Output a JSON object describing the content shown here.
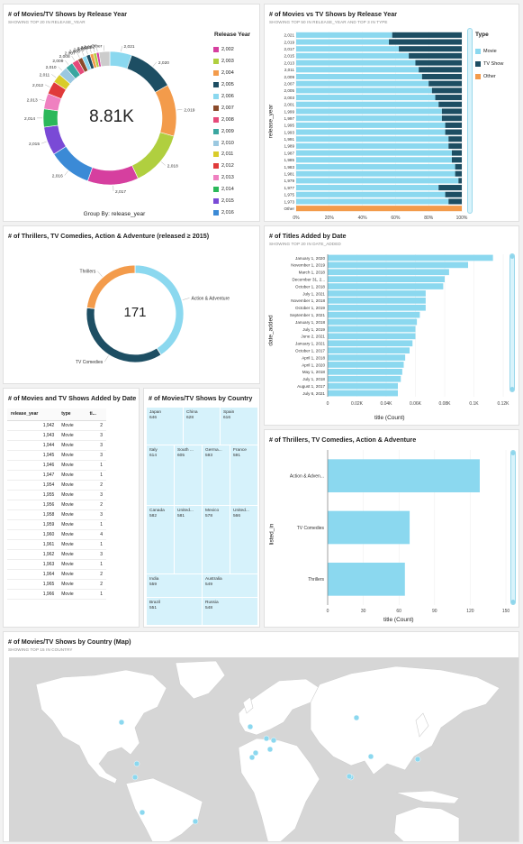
{
  "colors": {
    "accent": "#8bd8ef",
    "dark": "#1d4e63",
    "other": "#f39b4b",
    "panel_bg": "#ffffff",
    "page_bg": "#f2f2f2"
  },
  "release_year_panel": {
    "title": "# of Movies/TV Shows by Release Year",
    "subtitle": "SHOWING TOP 20 IN RELEASE_YEAR",
    "center_value": "8.81K",
    "group_by": "Group By: release_year",
    "legend_title": "Release Year",
    "legend": [
      {
        "label": "2,002",
        "color": "#d63f9f"
      },
      {
        "label": "2,003",
        "color": "#b0cf3f"
      },
      {
        "label": "2,004",
        "color": "#f39b4b"
      },
      {
        "label": "2,005",
        "color": "#1d4e63"
      },
      {
        "label": "2,006",
        "color": "#8bd8ef"
      },
      {
        "label": "2,007",
        "color": "#8a4a2a"
      },
      {
        "label": "2,008",
        "color": "#e64a7a"
      },
      {
        "label": "2,009",
        "color": "#3aa6a0"
      },
      {
        "label": "2,010",
        "color": "#9bc8e0"
      },
      {
        "label": "2,011",
        "color": "#d9cc2a"
      },
      {
        "label": "2,012",
        "color": "#e03a3a"
      },
      {
        "label": "2,013",
        "color": "#ef80c0"
      },
      {
        "label": "2,014",
        "color": "#2bb85a"
      },
      {
        "label": "2,015",
        "color": "#7a4ad6"
      },
      {
        "label": "2,016",
        "color": "#3b8ad6"
      }
    ],
    "slices": [
      {
        "label": "2,021",
        "value": 5.1,
        "color": "#8bd8ef"
      },
      {
        "label": "2,020",
        "value": 10.9,
        "color": "#1d4e63"
      },
      {
        "label": "2,019",
        "value": 12.0,
        "color": "#f39b4b"
      },
      {
        "label": "2,018",
        "value": 13.0,
        "color": "#b0cf3f"
      },
      {
        "label": "2,017",
        "value": 11.8,
        "color": "#d63f9f"
      },
      {
        "label": "2,016",
        "value": 10.0,
        "color": "#3b8ad6"
      },
      {
        "label": "2,015",
        "value": 6.6,
        "color": "#7a4ad6"
      },
      {
        "label": "2,014",
        "value": 4.2,
        "color": "#2bb85a"
      },
      {
        "label": "2,013",
        "value": 3.6,
        "color": "#ef80c0"
      },
      {
        "label": "2,012",
        "value": 3.0,
        "color": "#e03a3a"
      },
      {
        "label": "2,011",
        "value": 2.1,
        "color": "#d9cc2a"
      },
      {
        "label": "2,010",
        "value": 2.1,
        "color": "#9bc8e0"
      },
      {
        "label": "2,009",
        "value": 1.8,
        "color": "#3aa6a0"
      },
      {
        "label": "2,008",
        "value": 1.5,
        "color": "#e64a7a"
      },
      {
        "label": "2,007",
        "value": 1.1,
        "color": "#8a4a2a"
      },
      {
        "label": "2,006",
        "value": 1.0,
        "color": "#8bd8ef"
      },
      {
        "label": "2,005",
        "value": 0.9,
        "color": "#1d4e63"
      },
      {
        "label": "2,004",
        "value": 0.8,
        "color": "#f39b4b"
      },
      {
        "label": "2,003",
        "value": 0.7,
        "color": "#b0cf3f"
      },
      {
        "label": "2,002",
        "value": 0.6,
        "color": "#d63f9f"
      },
      {
        "label": "Other",
        "value": 2.5,
        "color": "#cccccc"
      }
    ]
  },
  "movies_vs_tv_panel": {
    "title": "# of Movies vs TV Shows by Release Year",
    "subtitle": "SHOWING TOP 50 IN RELEASE_YEAR AND TOP 3 IN TYPE",
    "ylabel": "release_year",
    "legend_title": "Type",
    "legend": [
      {
        "label": "Movie",
        "color": "#8bd8ef"
      },
      {
        "label": "TV Show",
        "color": "#1d4e63"
      },
      {
        "label": "Other",
        "color": "#f39b4b"
      }
    ],
    "x_ticks": [
      "0%",
      "20%",
      "40%",
      "60%",
      "80%",
      "100%"
    ]
  },
  "thrillers_donut_panel": {
    "title": "# of Thrillers, TV Comedies, Action & Adventure (released ≥ 2015)",
    "center_value": "171",
    "slices": [
      {
        "label": "Action & Adventure",
        "value": 41,
        "color": "#8bd8ef"
      },
      {
        "label": "TV Comedies",
        "value": 36,
        "color": "#1d4e63"
      },
      {
        "label": "Thrillers",
        "value": 23,
        "color": "#f39b4b"
      }
    ]
  },
  "titles_added_panel": {
    "title": "# of Titles Added by Date",
    "subtitle": "SHOWING TOP 20 IN DATE_ADDED",
    "ylabel": "date_added",
    "xlabel": "title (Count)",
    "x_ticks": [
      "0",
      "0.02K",
      "0.04K",
      "0.06K",
      "0.08K",
      "0.1K",
      "0.12K"
    ]
  },
  "added_by_date_panel": {
    "title": "# of Movies and TV Shows Added by Date",
    "columns": [
      "release_year",
      "type",
      "ti..."
    ],
    "rows": [
      [
        "1,942",
        "Movie",
        "2"
      ],
      [
        "1,943",
        "Movie",
        "3"
      ],
      [
        "1,944",
        "Movie",
        "3"
      ],
      [
        "1,945",
        "Movie",
        "3"
      ],
      [
        "1,946",
        "Movie",
        "1"
      ],
      [
        "1,947",
        "Movie",
        "1"
      ],
      [
        "1,954",
        "Movie",
        "2"
      ],
      [
        "1,955",
        "Movie",
        "3"
      ],
      [
        "1,956",
        "Movie",
        "2"
      ],
      [
        "1,958",
        "Movie",
        "3"
      ],
      [
        "1,959",
        "Movie",
        "1"
      ],
      [
        "1,960",
        "Movie",
        "4"
      ],
      [
        "1,961",
        "Movie",
        "1"
      ],
      [
        "1,962",
        "Movie",
        "3"
      ],
      [
        "1,963",
        "Movie",
        "1"
      ],
      [
        "1,964",
        "Movie",
        "2"
      ],
      [
        "1,965",
        "Movie",
        "2"
      ],
      [
        "1,966",
        "Movie",
        "1"
      ]
    ]
  },
  "country_treemap_panel": {
    "title": "# of Movies/TV Shows by Country",
    "cells": [
      {
        "name": "Japan",
        "value": "646"
      },
      {
        "name": "China",
        "value": "628"
      },
      {
        "name": "Spain",
        "value": "616"
      },
      {
        "name": "Italy",
        "value": "614"
      },
      {
        "name": "South ...",
        "value": "605"
      },
      {
        "name": "Germa...",
        "value": "593"
      },
      {
        "name": "France",
        "value": "591"
      },
      {
        "name": "Canada",
        "value": "582"
      },
      {
        "name": "United...",
        "value": "581"
      },
      {
        "name": "Mexico",
        "value": "578"
      },
      {
        "name": "United...",
        "value": "566"
      },
      {
        "name": "India",
        "value": "559"
      },
      {
        "name": "Australia",
        "value": "549"
      },
      {
        "name": "Brazil",
        "value": "551"
      },
      {
        "name": "Russia",
        "value": "548"
      }
    ]
  },
  "listed_in_panel": {
    "title": "# of Thrillers, TV Comedies, Action & Adventure",
    "ylabel": "listed_in",
    "xlabel": "title (Count)",
    "x_ticks": [
      "0",
      "30",
      "60",
      "90",
      "120",
      "150"
    ]
  },
  "map_panel": {
    "title": "# of Movies/TV Shows by Country (Map)",
    "subtitle": "SHOWING TOP 15 IN COUNTRY"
  },
  "chart_data": [
    {
      "type": "pie",
      "title": "# of Movies/TV Shows by Release Year",
      "subtitle": "SHOWING TOP 20 IN RELEASE_YEAR",
      "total_label": "8.81K",
      "labels": [
        "2,021",
        "2,020",
        "2,019",
        "2,018",
        "2,017",
        "2,016",
        "2,015",
        "2,014",
        "2,013",
        "2,012",
        "2,011",
        "2,010",
        "2,009",
        "2,008",
        "2,007",
        "2,006",
        "2,005",
        "2,004",
        "2,003",
        "2,002",
        "Other"
      ],
      "values": [
        5.1,
        10.9,
        12.0,
        13.0,
        11.8,
        10.0,
        6.6,
        4.2,
        3.6,
        3.0,
        2.1,
        2.1,
        1.8,
        1.5,
        1.1,
        1.0,
        0.9,
        0.8,
        0.7,
        0.6,
        2.5
      ]
    },
    {
      "type": "bar",
      "title": "# of Movies vs TV Shows by Release Year",
      "subtitle": "SHOWING TOP 50 IN RELEASE_YEAR AND TOP 3 IN TYPE",
      "ylabel": "release_year",
      "categories": [
        "2,021",
        "2,019",
        "2,017",
        "2,015",
        "2,013",
        "2,011",
        "2,009",
        "2,007",
        "2,005",
        "2,003",
        "2,001",
        "1,999",
        "1,997",
        "1,995",
        "1,993",
        "1,991",
        "1,989",
        "1,987",
        "1,985",
        "1,983",
        "1,981",
        "1,979",
        "1,977",
        "1,975",
        "1,973",
        "Other"
      ],
      "series": [
        {
          "name": "Movie",
          "values": [
            58,
            56,
            62,
            68,
            72,
            74,
            76,
            80,
            82,
            84,
            86,
            88,
            88,
            90,
            90,
            92,
            92,
            94,
            94,
            96,
            96,
            98,
            86,
            90,
            92,
            0
          ]
        },
        {
          "name": "TV Show",
          "values": [
            42,
            44,
            38,
            32,
            28,
            26,
            24,
            20,
            18,
            16,
            14,
            12,
            12,
            10,
            10,
            8,
            8,
            6,
            6,
            4,
            4,
            2,
            14,
            10,
            8,
            0
          ]
        },
        {
          "name": "Other",
          "values": [
            0,
            0,
            0,
            0,
            0,
            0,
            0,
            0,
            0,
            0,
            0,
            0,
            0,
            0,
            0,
            0,
            0,
            0,
            0,
            0,
            0,
            0,
            0,
            0,
            0,
            100
          ]
        }
      ],
      "xlim": [
        0,
        100
      ]
    },
    {
      "type": "pie",
      "title": "# of Thrillers, TV Comedies, Action & Adventure (released ≥ 2015)",
      "total_label": "171",
      "labels": [
        "Action & Adventure",
        "TV Comedies",
        "Thrillers"
      ],
      "values": [
        41,
        36,
        23
      ]
    },
    {
      "type": "bar",
      "title": "# of Titles Added by Date",
      "subtitle": "SHOWING TOP 20 IN DATE_ADDED",
      "ylabel": "date_added",
      "xlabel": "title (Count)",
      "categories": [
        "January 1, 2020",
        "November 1, 2019",
        "March 1, 2018",
        "December 31, 2...",
        "October 1, 2018",
        "July 1, 2021",
        "November 1, 2018",
        "October 1, 2019",
        "September 1, 2021",
        "January 1, 2018",
        "July 1, 2019",
        "June 2, 2021",
        "January 1, 2021",
        "October 1, 2017",
        "April 1, 2018",
        "April 1, 2020",
        "May 1, 2018",
        "July 1, 2018",
        "August 1, 2017",
        "July 6, 2021"
      ],
      "values": [
        113,
        96,
        83,
        80,
        79,
        67,
        67,
        67,
        63,
        61,
        60,
        60,
        58,
        56,
        53,
        52,
        51,
        50,
        48,
        48
      ],
      "xlim": [
        0,
        120
      ]
    },
    {
      "type": "bar",
      "title": "# of Thrillers, TV Comedies, Action & Adventure",
      "ylabel": "listed_in",
      "xlabel": "title (Count)",
      "categories": [
        "Action & Adven...",
        "TV Comedies",
        "Thrillers"
      ],
      "values": [
        128,
        69,
        65
      ],
      "xlim": [
        0,
        150
      ]
    }
  ]
}
